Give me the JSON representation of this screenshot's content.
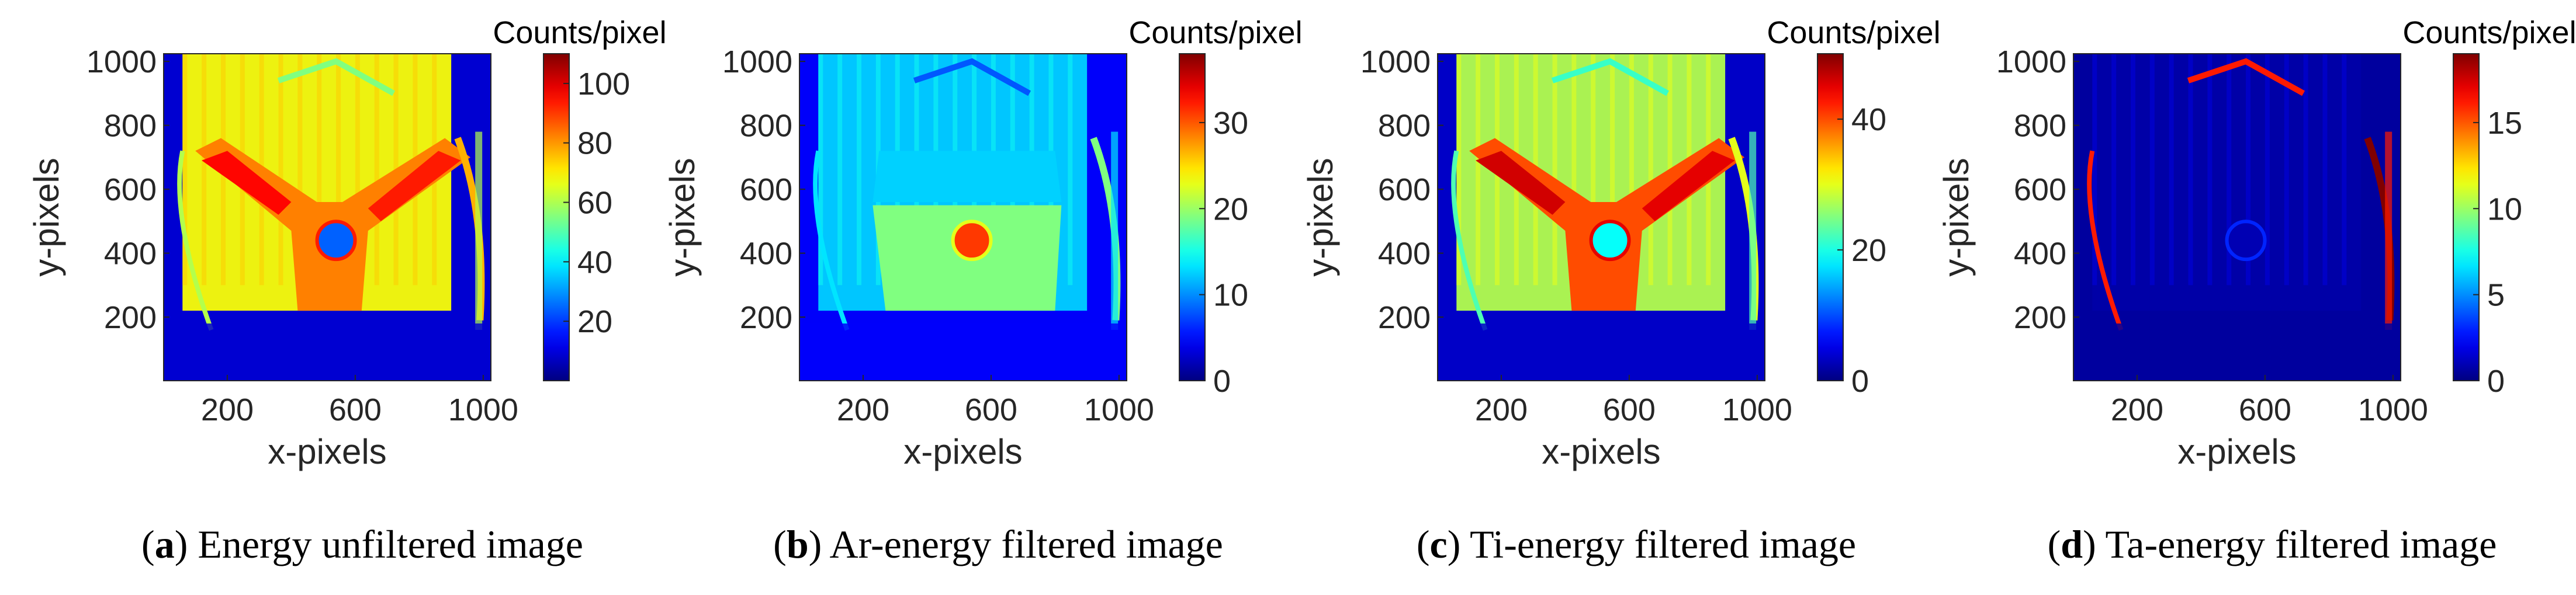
{
  "chart_data": [
    {
      "type": "heatmap",
      "panel": "a",
      "caption_text": "Energy unfiltered image",
      "xlabel": "x-pixels",
      "ylabel": "y-pixels",
      "xlim": [
        1,
        1024
      ],
      "ylim": [
        1,
        1024
      ],
      "xticks": [
        200,
        600,
        1000
      ],
      "yticks": [
        200,
        400,
        600,
        800,
        1000
      ],
      "colorbar": {
        "title": "Counts/pixel",
        "range": [
          0,
          110
        ],
        "ticks": [
          20,
          40,
          60,
          80,
          100
        ],
        "colormap": "jet"
      },
      "scene": {
        "background": 0.08,
        "column": 0.62,
        "yoke": 0.75,
        "ring": 0.22,
        "rim": 0.55,
        "shape": "yoke"
      }
    },
    {
      "type": "heatmap",
      "panel": "b",
      "caption_text": "Ar-energy filtered image",
      "xlabel": "x-pixels",
      "ylabel": "y-pixels",
      "xlim": [
        1,
        1024
      ],
      "ylim": [
        1,
        1024
      ],
      "xticks": [
        200,
        600,
        1000
      ],
      "yticks": [
        200,
        400,
        600,
        800,
        1000
      ],
      "colorbar": {
        "title": "Counts/pixel",
        "range": [
          0,
          38
        ],
        "ticks": [
          0,
          10,
          20,
          30
        ],
        "colormap": "jet"
      },
      "scene": {
        "background": 0.12,
        "column": 0.33,
        "yoke": 0.5,
        "ring": 0.82,
        "rim": 0.35,
        "shape": "block"
      }
    },
    {
      "type": "heatmap",
      "panel": "c",
      "caption_text": "Ti-energy filtered image",
      "xlabel": "x-pixels",
      "ylabel": "y-pixels",
      "xlim": [
        1,
        1024
      ],
      "ylim": [
        1,
        1024
      ],
      "xticks": [
        200,
        600,
        1000
      ],
      "yticks": [
        200,
        400,
        600,
        800,
        1000
      ],
      "colorbar": {
        "title": "Counts/pixel",
        "range": [
          0,
          50
        ],
        "ticks": [
          0,
          20,
          40
        ],
        "colormap": "jet"
      },
      "scene": {
        "background": 0.07,
        "column": 0.55,
        "yoke": 0.8,
        "ring": 0.38,
        "rim": 0.45,
        "shape": "yoke"
      }
    },
    {
      "type": "heatmap",
      "panel": "d",
      "caption_text": "Ta-energy filtered image",
      "xlabel": "x-pixels",
      "ylabel": "y-pixels",
      "xlim": [
        1,
        1024
      ],
      "ylim": [
        1,
        1024
      ],
      "xticks": [
        200,
        600,
        1000
      ],
      "yticks": [
        200,
        400,
        600,
        800,
        1000
      ],
      "colorbar": {
        "title": "Counts/pixel",
        "range": [
          0,
          19
        ],
        "ticks": [
          0,
          5,
          10,
          15
        ],
        "colormap": "jet"
      },
      "scene": {
        "background": 0.03,
        "column": 0.04,
        "yoke": 0.06,
        "ring": 0.05,
        "rim": 0.85,
        "shape": "rim"
      }
    }
  ],
  "captions": [
    {
      "letter": "a",
      "text": "Energy unfiltered image"
    },
    {
      "letter": "b",
      "text": "Ar-energy filtered image"
    },
    {
      "letter": "c",
      "text": "Ti-energy filtered image"
    },
    {
      "letter": "d",
      "text": "Ta-energy filtered image"
    }
  ]
}
